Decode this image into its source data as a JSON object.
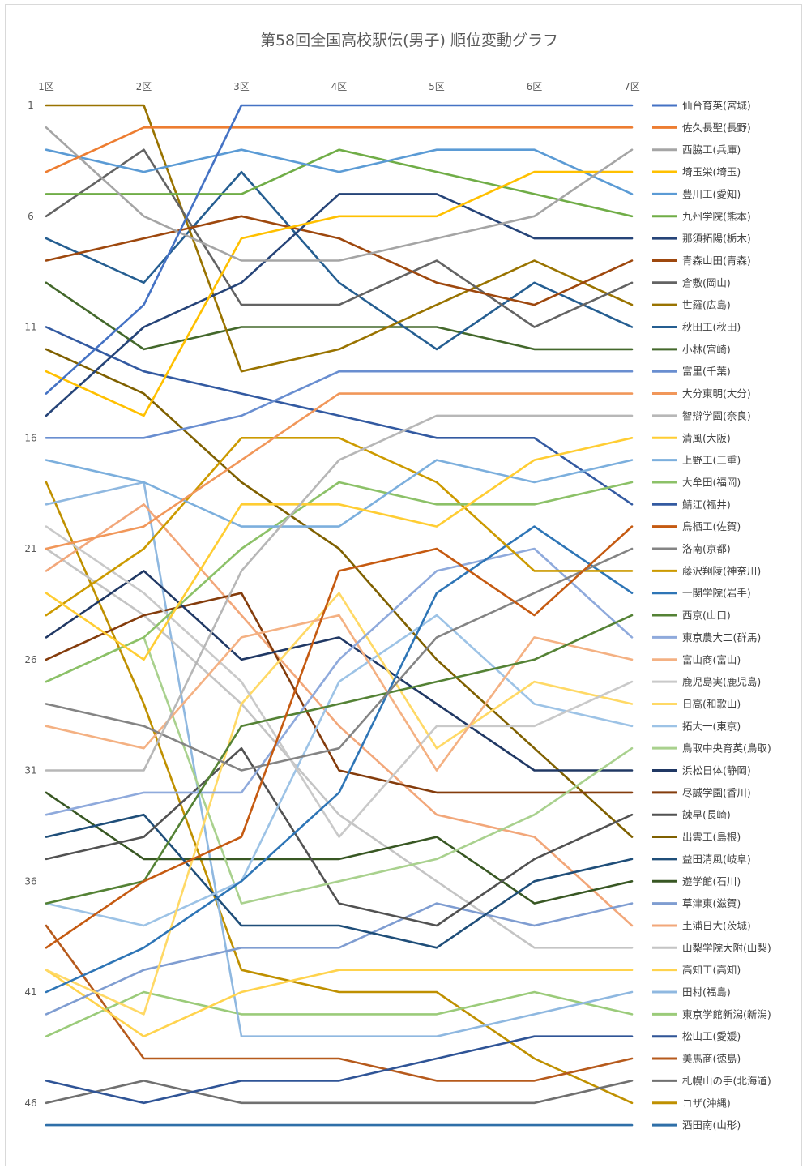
{
  "chart_data": {
    "type": "line",
    "title": "第58回全国高校駅伝(男子) 順位変動グラフ",
    "xlabel": "",
    "ylabel": "",
    "categories": [
      "1区",
      "2区",
      "3区",
      "4区",
      "5区",
      "6区",
      "7区"
    ],
    "ylim": [
      1,
      47
    ],
    "y_inverted": true,
    "y_ticks": [
      1,
      6,
      11,
      16,
      21,
      26,
      31,
      36,
      41,
      46
    ],
    "grid": false,
    "legend_position": "right",
    "series": [
      {
        "name": "仙台育英(宮城)",
        "color": "#4472C4",
        "values": [
          14,
          10,
          1,
          1,
          1,
          1,
          1
        ]
      },
      {
        "name": "佐久長聖(長野)",
        "color": "#ED7D31",
        "values": [
          4,
          2,
          2,
          2,
          2,
          2,
          2
        ]
      },
      {
        "name": "西脇工(兵庫)",
        "color": "#A5A5A5",
        "values": [
          2,
          6,
          8,
          8,
          7,
          6,
          3
        ]
      },
      {
        "name": "埼玉栄(埼玉)",
        "color": "#FFC000",
        "values": [
          13,
          15,
          7,
          6,
          6,
          4,
          4
        ]
      },
      {
        "name": "豊川工(愛知)",
        "color": "#5B9BD5",
        "values": [
          3,
          4,
          3,
          4,
          3,
          3,
          5
        ]
      },
      {
        "name": "九州学院(熊本)",
        "color": "#70AD47",
        "values": [
          5,
          5,
          5,
          3,
          4,
          5,
          6
        ]
      },
      {
        "name": "那須拓陽(栃木)",
        "color": "#264478",
        "values": [
          15,
          11,
          9,
          5,
          5,
          7,
          7
        ]
      },
      {
        "name": "青森山田(青森)",
        "color": "#9E480E",
        "values": [
          8,
          7,
          6,
          7,
          9,
          10,
          8
        ]
      },
      {
        "name": "倉敷(岡山)",
        "color": "#636363",
        "values": [
          6,
          3,
          10,
          10,
          8,
          11,
          9
        ]
      },
      {
        "name": "世羅(広島)",
        "color": "#997300",
        "values": [
          1,
          1,
          13,
          12,
          10,
          8,
          10
        ]
      },
      {
        "name": "秋田工(秋田)",
        "color": "#255E91",
        "values": [
          7,
          9,
          4,
          9,
          12,
          9,
          11
        ]
      },
      {
        "name": "小林(宮崎)",
        "color": "#43682B",
        "values": [
          9,
          12,
          11,
          11,
          11,
          12,
          12
        ]
      },
      {
        "name": "富里(千葉)",
        "color": "#698ED0",
        "values": [
          16,
          16,
          15,
          13,
          13,
          13,
          13
        ]
      },
      {
        "name": "大分東明(大分)",
        "color": "#F1975A",
        "values": [
          21,
          20,
          17,
          14,
          14,
          14,
          14
        ]
      },
      {
        "name": "智辯学園(奈良)",
        "color": "#B7B7B7",
        "values": [
          31,
          31,
          22,
          17,
          15,
          15,
          15
        ]
      },
      {
        "name": "清風(大阪)",
        "color": "#FFCD33",
        "values": [
          23,
          26,
          19,
          19,
          20,
          17,
          16
        ]
      },
      {
        "name": "上野工(三重)",
        "color": "#7CAFDD",
        "values": [
          17,
          18,
          20,
          20,
          17,
          18,
          17
        ]
      },
      {
        "name": "大牟田(福岡)",
        "color": "#8CC168",
        "values": [
          27,
          25,
          21,
          18,
          19,
          19,
          18
        ]
      },
      {
        "name": "鯖江(福井)",
        "color": "#335AA1",
        "values": [
          11,
          13,
          14,
          15,
          16,
          16,
          19
        ]
      },
      {
        "name": "鳥栖工(佐賀)",
        "color": "#C55A11",
        "values": [
          39,
          36,
          34,
          22,
          21,
          24,
          20
        ]
      },
      {
        "name": "洛南(京都)",
        "color": "#848484",
        "values": [
          28,
          29,
          31,
          30,
          25,
          23,
          21
        ]
      },
      {
        "name": "藤沢翔陵(神奈川)",
        "color": "#CC9A00",
        "values": [
          24,
          21,
          16,
          16,
          18,
          22,
          22
        ]
      },
      {
        "name": "一関学院(岩手)",
        "color": "#2E75B6",
        "values": [
          41,
          39,
          36,
          32,
          23,
          20,
          23
        ]
      },
      {
        "name": "西京(山口)",
        "color": "#548235",
        "values": [
          37,
          36,
          29,
          28,
          27,
          26,
          24
        ]
      },
      {
        "name": "東京農大二(群馬)",
        "color": "#8FAADC",
        "values": [
          33,
          32,
          32,
          26,
          22,
          21,
          25
        ]
      },
      {
        "name": "富山商(富山)",
        "color": "#F4B183",
        "values": [
          29,
          30,
          25,
          24,
          31,
          25,
          26
        ]
      },
      {
        "name": "鹿児島実(鹿児島)",
        "color": "#C9C9C9",
        "values": [
          20,
          23,
          27,
          34,
          29,
          29,
          27
        ]
      },
      {
        "name": "日高(和歌山)",
        "color": "#FFD966",
        "values": [
          40,
          42,
          28,
          23,
          30,
          27,
          28
        ]
      },
      {
        "name": "拓大一(東京)",
        "color": "#9DC3E6",
        "values": [
          37,
          38,
          36,
          27,
          24,
          28,
          29
        ]
      },
      {
        "name": "鳥取中央育英(鳥取)",
        "color": "#A9D18E",
        "values": [
          27,
          25,
          37,
          36,
          35,
          33,
          30
        ]
      },
      {
        "name": "浜松日体(静岡)",
        "color": "#203864",
        "values": [
          25,
          22,
          26,
          25,
          28,
          31,
          31
        ]
      },
      {
        "name": "尽誠学園(香川)",
        "color": "#843C0C",
        "values": [
          26,
          24,
          23,
          31,
          32,
          32,
          32
        ]
      },
      {
        "name": "諫早(長崎)",
        "color": "#525252",
        "values": [
          35,
          34,
          30,
          37,
          38,
          35,
          33
        ]
      },
      {
        "name": "出雲工(島根)",
        "color": "#7F6000",
        "values": [
          12,
          14,
          18,
          21,
          26,
          30,
          34
        ]
      },
      {
        "name": "益田清風(岐阜)",
        "color": "#1F4E79",
        "values": [
          34,
          33,
          38,
          38,
          39,
          36,
          35
        ]
      },
      {
        "name": "遊学館(石川)",
        "color": "#385723",
        "values": [
          32,
          35,
          35,
          35,
          34,
          37,
          36
        ]
      },
      {
        "name": "草津東(滋賀)",
        "color": "#7F9DD1",
        "values": [
          42,
          40,
          39,
          39,
          37,
          38,
          37
        ]
      },
      {
        "name": "土浦日大(茨城)",
        "color": "#F2A77A",
        "values": [
          22,
          19,
          24,
          29,
          33,
          34,
          38
        ]
      },
      {
        "name": "山梨学院大附(山梨)",
        "color": "#C4C4C4",
        "values": [
          21,
          24,
          28,
          33,
          36,
          39,
          39
        ]
      },
      {
        "name": "高知工(高知)",
        "color": "#FFD34D",
        "values": [
          40,
          43,
          41,
          40,
          40,
          40,
          40
        ]
      },
      {
        "name": "田村(福島)",
        "color": "#8FB8E0",
        "values": [
          19,
          18,
          43,
          43,
          43,
          42,
          41
        ]
      },
      {
        "name": "東京学館新潟(新潟)",
        "color": "#9BCB7A",
        "values": [
          43,
          41,
          42,
          42,
          42,
          41,
          42
        ]
      },
      {
        "name": "松山工(愛媛)",
        "color": "#2F5496",
        "values": [
          45,
          46,
          45,
          45,
          44,
          43,
          43
        ]
      },
      {
        "name": "美馬商(徳島)",
        "color": "#B65A1C",
        "values": [
          38,
          44,
          44,
          44,
          45,
          45,
          44
        ]
      },
      {
        "name": "札幌山の手(北海道)",
        "color": "#707070",
        "values": [
          46,
          45,
          46,
          46,
          46,
          46,
          45
        ]
      },
      {
        "name": "コザ(沖縄)",
        "color": "#BF9000",
        "values": [
          18,
          28,
          40,
          41,
          41,
          44,
          46
        ]
      },
      {
        "name": "酒田南(山形)",
        "color": "#2F6FA8",
        "values": [
          47,
          47,
          47,
          47,
          47,
          47,
          47
        ]
      }
    ]
  }
}
